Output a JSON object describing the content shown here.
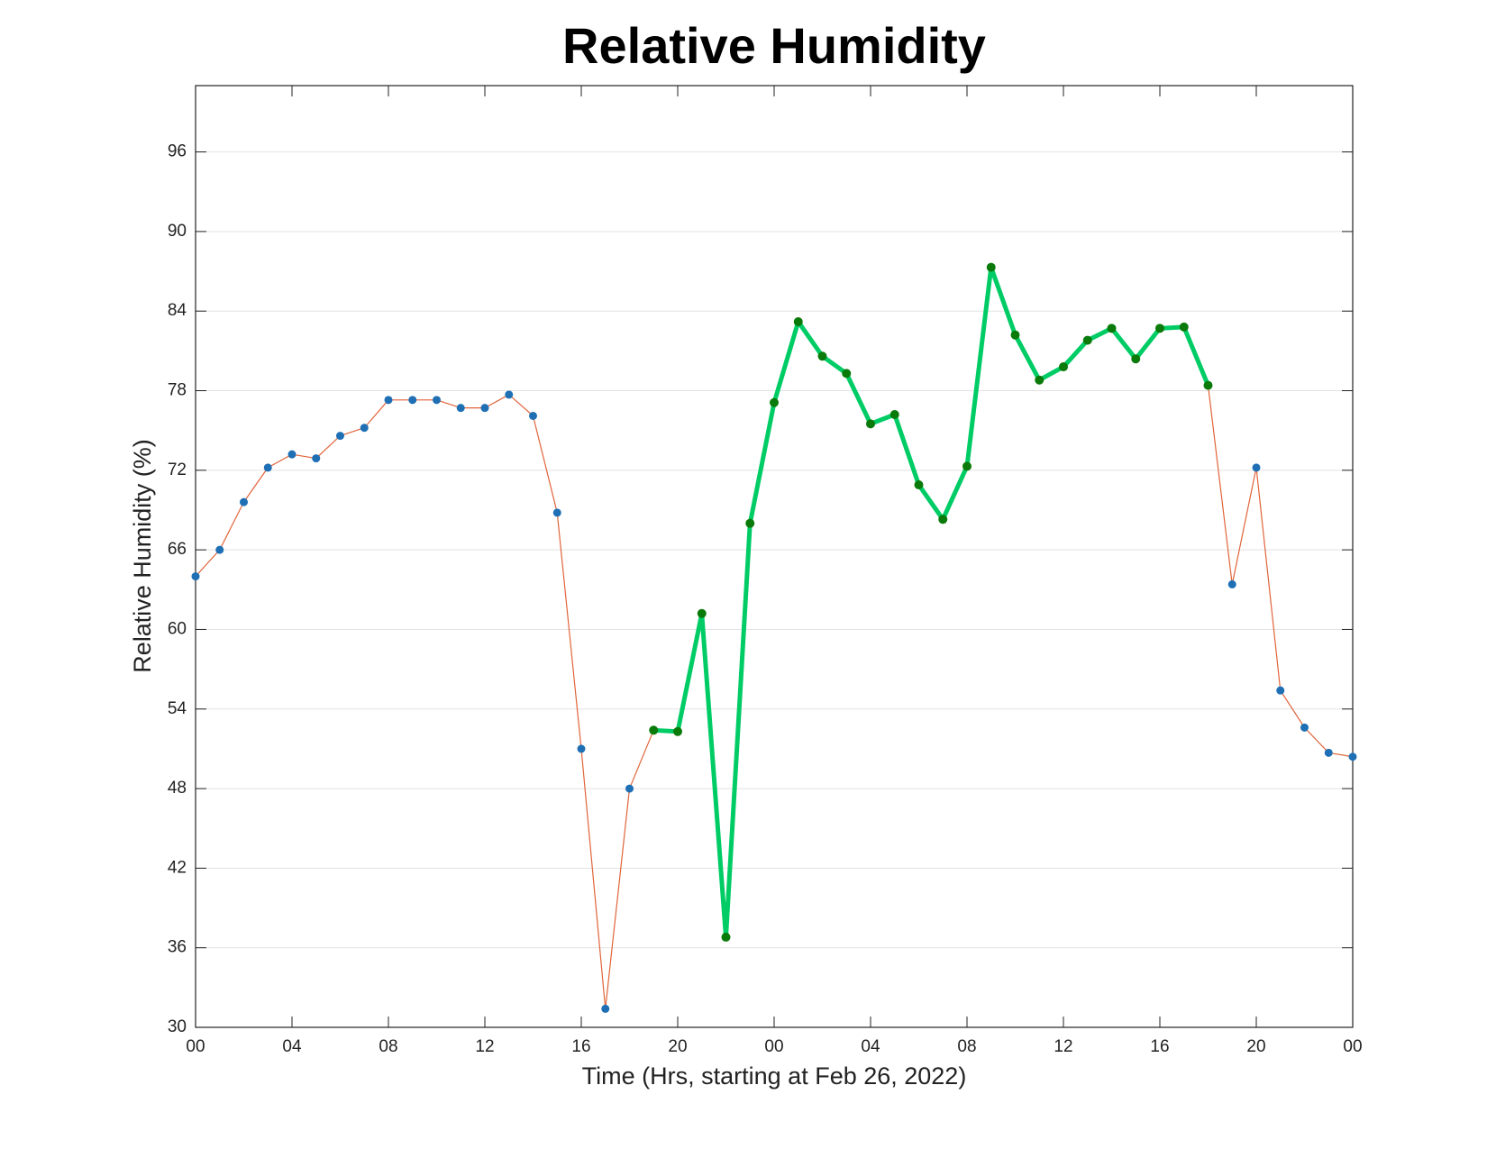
{
  "chart_data": {
    "type": "line",
    "title": "Relative Humidity",
    "xlabel": "Time (Hrs, starting at Feb 26, 2022)",
    "ylabel": "Relative Humidity (%)",
    "x": [
      0,
      1,
      2,
      3,
      4,
      5,
      6,
      7,
      8,
      9,
      10,
      11,
      12,
      13,
      14,
      15,
      16,
      17,
      18,
      19,
      20,
      21,
      22,
      23,
      24,
      25,
      26,
      27,
      28,
      29,
      30,
      31,
      32,
      33,
      34,
      35,
      36,
      37,
      38,
      39,
      40,
      41,
      42,
      43,
      44,
      45,
      46,
      47,
      48
    ],
    "series": [
      {
        "color": "#e0643a",
        "marker_color": "#1f6fb5",
        "line_width": 1.2,
        "values": [
          64.0,
          66.0,
          69.6,
          72.2,
          73.2,
          72.9,
          74.6,
          75.2,
          77.3,
          77.3,
          77.3,
          76.7,
          76.7,
          77.7,
          76.1,
          68.8,
          51.0,
          31.4,
          48.0,
          52.4,
          52.3,
          61.2,
          36.8,
          68.0,
          77.1,
          83.2,
          80.6,
          79.3,
          75.5,
          76.2,
          70.9,
          68.3,
          72.3,
          87.3,
          82.2,
          78.8,
          79.8,
          81.8,
          82.7,
          80.4,
          82.7,
          82.8,
          78.4,
          63.4,
          72.2,
          55.4,
          52.6,
          50.7,
          50.4
        ]
      },
      {
        "color": "#00cc66",
        "marker_color": "#0a7a0a",
        "line_width": 5,
        "values": [
          null,
          null,
          null,
          null,
          null,
          null,
          null,
          null,
          null,
          null,
          null,
          null,
          null,
          null,
          null,
          null,
          null,
          null,
          null,
          52.4,
          52.3,
          61.2,
          36.8,
          68.0,
          77.1,
          83.2,
          80.6,
          79.3,
          75.5,
          76.2,
          70.9,
          68.3,
          72.3,
          87.3,
          82.2,
          78.8,
          79.8,
          81.8,
          82.7,
          80.4,
          82.7,
          82.8,
          78.4,
          null,
          null,
          null,
          null,
          null,
          null
        ]
      }
    ],
    "xlim": [
      0,
      48
    ],
    "xticks": [
      {
        "value": 0,
        "label": "00"
      },
      {
        "value": 4,
        "label": "04"
      },
      {
        "value": 8,
        "label": "08"
      },
      {
        "value": 12,
        "label": "12"
      },
      {
        "value": 16,
        "label": "16"
      },
      {
        "value": 20,
        "label": "20"
      },
      {
        "value": 24,
        "label": "00"
      },
      {
        "value": 28,
        "label": "04"
      },
      {
        "value": 32,
        "label": "08"
      },
      {
        "value": 36,
        "label": "12"
      },
      {
        "value": 40,
        "label": "16"
      },
      {
        "value": 44,
        "label": "20"
      },
      {
        "value": 48,
        "label": "00"
      }
    ],
    "ylim": [
      30,
      101
    ],
    "yticks": [
      30,
      36,
      42,
      48,
      54,
      60,
      66,
      72,
      78,
      84,
      90,
      96
    ],
    "grid": true
  }
}
